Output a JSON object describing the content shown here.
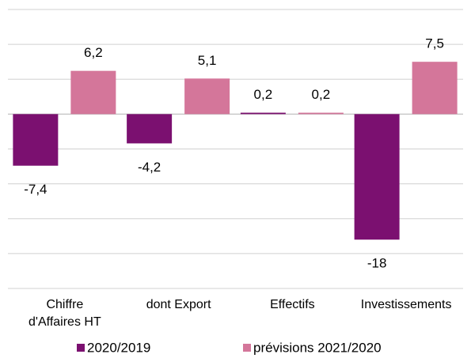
{
  "chart_data": {
    "type": "bar",
    "categories": [
      "Chiffre d'Affaires HT",
      "dont Export",
      "Effectifs",
      "Investissements"
    ],
    "series": [
      {
        "name": "2020/2019",
        "color": "#7b1070",
        "values": [
          -7.4,
          -4.2,
          0.2,
          -18
        ],
        "value_labels": [
          "-7,4",
          "-4,2",
          "0,2",
          "-18"
        ]
      },
      {
        "name": "prévisions 2021/2020",
        "color": "#d4769a",
        "values": [
          6.2,
          5.1,
          0.2,
          7.5
        ],
        "value_labels": [
          "6,2",
          "5,1",
          "0,2",
          "7,5"
        ]
      }
    ],
    "ylim": [
      -25,
      15
    ],
    "yticks": [
      -25,
      -20,
      -15,
      -10,
      -5,
      0,
      5,
      10,
      15
    ],
    "grid": true,
    "legend": "bottom"
  }
}
